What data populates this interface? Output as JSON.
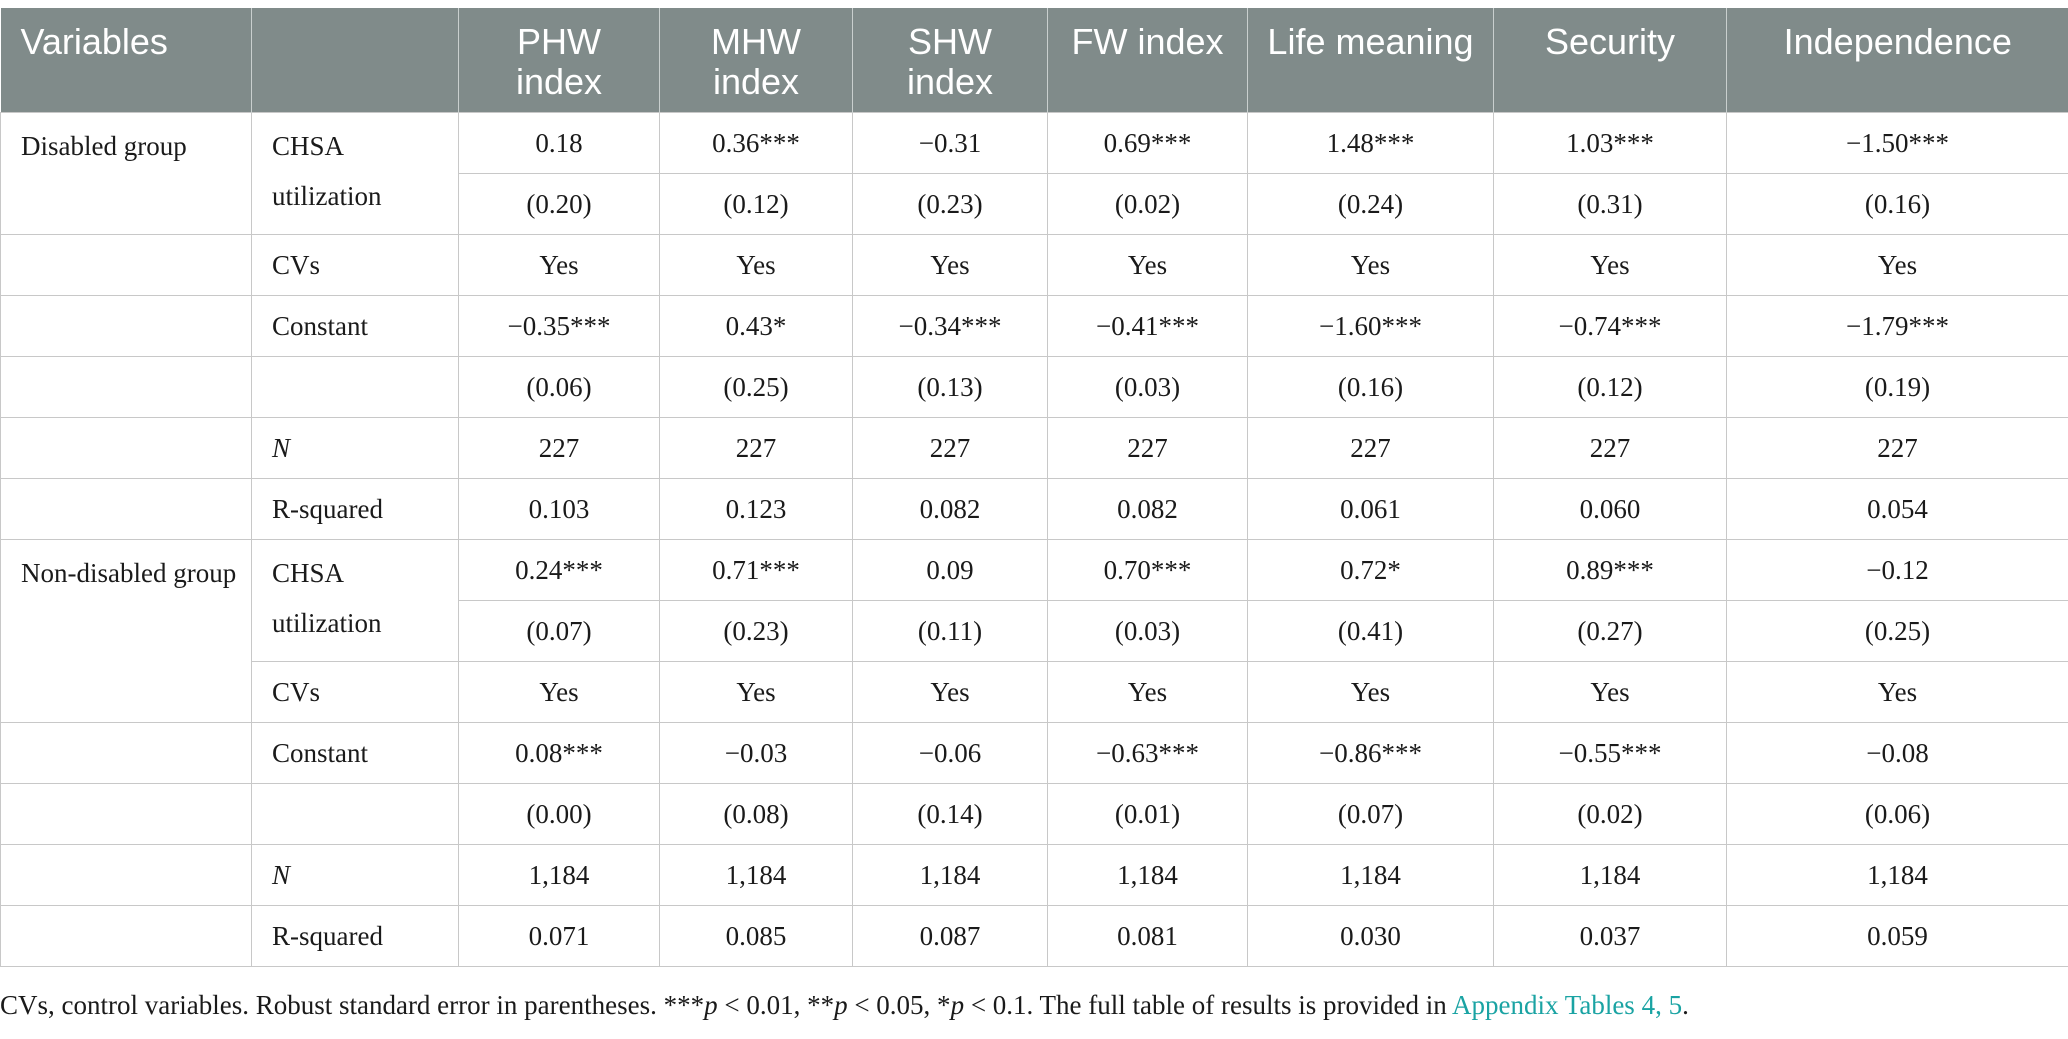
{
  "table": {
    "headers": [
      "Variables",
      "",
      "PHW index",
      "MHW index",
      "SHW index",
      "FW index",
      "Life meaning",
      "Security",
      "Independence"
    ],
    "groups": [
      {
        "name": "Disabled group",
        "rows": [
          {
            "label": "CHSA utilization",
            "values": [
              "0.18",
              "0.36***",
              "−0.31",
              "0.69***",
              "1.48***",
              "1.03***",
              "−1.50***"
            ]
          },
          {
            "label": "",
            "values": [
              "(0.20)",
              "(0.12)",
              "(0.23)",
              "(0.02)",
              "(0.24)",
              "(0.31)",
              "(0.16)"
            ]
          },
          {
            "label": "CVs",
            "values": [
              "Yes",
              "Yes",
              "Yes",
              "Yes",
              "Yes",
              "Yes",
              "Yes"
            ]
          },
          {
            "label": "Constant",
            "values": [
              "−0.35***",
              "0.43*",
              "−0.34***",
              "−0.41***",
              "−1.60***",
              "−0.74***",
              "−1.79***"
            ]
          },
          {
            "label": "",
            "values": [
              "(0.06)",
              "(0.25)",
              "(0.13)",
              "(0.03)",
              "(0.16)",
              "(0.12)",
              "(0.19)"
            ]
          },
          {
            "label": "N",
            "values": [
              "227",
              "227",
              "227",
              "227",
              "227",
              "227",
              "227"
            ]
          },
          {
            "label": "R-squared",
            "values": [
              "0.103",
              "0.123",
              "0.082",
              "0.082",
              "0.061",
              "0.060",
              "0.054"
            ]
          }
        ]
      },
      {
        "name": "Non-disabled group",
        "rows": [
          {
            "label": "CHSA utilization",
            "values": [
              "0.24***",
              "0.71***",
              "0.09",
              "0.70***",
              "0.72*",
              "0.89***",
              "−0.12"
            ]
          },
          {
            "label": "",
            "values": [
              "(0.07)",
              "(0.23)",
              "(0.11)",
              "(0.03)",
              "(0.41)",
              "(0.27)",
              "(0.25)"
            ]
          },
          {
            "label": "CVs",
            "values": [
              "Yes",
              "Yes",
              "Yes",
              "Yes",
              "Yes",
              "Yes",
              "Yes"
            ]
          },
          {
            "label": "Constant",
            "values": [
              "0.08***",
              "−0.03",
              "−0.06",
              "−0.63***",
              "−0.86***",
              "−0.55***",
              "−0.08"
            ]
          },
          {
            "label": "",
            "values": [
              "(0.00)",
              "(0.08)",
              "(0.14)",
              "(0.01)",
              "(0.07)",
              "(0.02)",
              "(0.06)"
            ]
          },
          {
            "label": "N",
            "values": [
              "1,184",
              "1,184",
              "1,184",
              "1,184",
              "1,184",
              "1,184",
              "1,184"
            ]
          },
          {
            "label": "R-squared",
            "values": [
              "0.071",
              "0.085",
              "0.087",
              "0.081",
              "0.030",
              "0.037",
              "0.059"
            ]
          }
        ]
      }
    ]
  },
  "footnote": {
    "p1": "CVs, control variables. Robust standard error in parentheses. ***",
    "p": "p",
    "p2": " < 0.01, **",
    "p3": " < 0.05, *",
    "p4": " < 0.1. The full table of results is provided in ",
    "link": "Appendix Tables 4, 5",
    "end": "."
  }
}
